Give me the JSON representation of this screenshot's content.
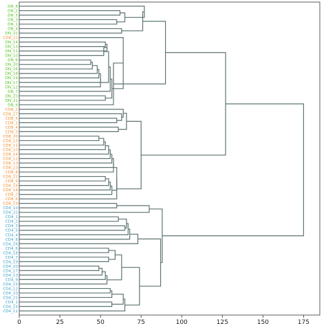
{
  "chart_data": {
    "type": "dendrogram",
    "title": "",
    "xlabel": "",
    "ylabel": "",
    "orientation": "horizontal",
    "xlim": [
      0,
      185
    ],
    "xticks": [
      0,
      25,
      50,
      75,
      100,
      125,
      150,
      175
    ],
    "xtick_labels": [
      "0",
      "25",
      "50",
      "75",
      "100",
      "125",
      "150",
      "175"
    ],
    "colors": {
      "DN": "#52c41a",
      "CD8": "#f08c2a",
      "CD4": "#3aa0c8",
      "link": "#5f7373",
      "axis": "#333333"
    },
    "leaves": [
      {
        "label": "DN_8",
        "group": "DN"
      },
      {
        "label": "DN_2",
        "group": "DN"
      },
      {
        "label": "DN_5",
        "group": "DN"
      },
      {
        "label": "DN_3",
        "group": "DN"
      },
      {
        "label": "DN_1",
        "group": "DN"
      },
      {
        "label": "DN_4",
        "group": "DN"
      },
      {
        "label": "DN_22",
        "group": "DN"
      },
      {
        "label": "CD8_22",
        "group": "CD8"
      },
      {
        "label": "DN_14",
        "group": "DN"
      },
      {
        "label": "DN_13",
        "group": "DN"
      },
      {
        "label": "DN_11",
        "group": "DN"
      },
      {
        "label": "DN_10",
        "group": "DN"
      },
      {
        "label": "DN_6",
        "group": "DN"
      },
      {
        "label": "DN_20",
        "group": "DN"
      },
      {
        "label": "DN_16",
        "group": "DN"
      },
      {
        "label": "DN_18",
        "group": "DN"
      },
      {
        "label": "DN_19",
        "group": "DN"
      },
      {
        "label": "DN_17",
        "group": "DN"
      },
      {
        "label": "DN_12",
        "group": "DN"
      },
      {
        "label": "DN_7",
        "group": "DN"
      },
      {
        "label": "DN_23",
        "group": "DN"
      },
      {
        "label": "DN_21",
        "group": "DN"
      },
      {
        "label": "DN_9",
        "group": "DN"
      },
      {
        "label": "CD8_2",
        "group": "CD8"
      },
      {
        "label": "CD8_17",
        "group": "CD8"
      },
      {
        "label": "CD8_5",
        "group": "CD8"
      },
      {
        "label": "CD8_1",
        "group": "CD8"
      },
      {
        "label": "CD8_4",
        "group": "CD8"
      },
      {
        "label": "CD8_3",
        "group": "CD8"
      },
      {
        "label": "CD8_20",
        "group": "CD8"
      },
      {
        "label": "CD8_15",
        "group": "CD8"
      },
      {
        "label": "CD8_11",
        "group": "CD8"
      },
      {
        "label": "CD8_10",
        "group": "CD8"
      },
      {
        "label": "CD8_14",
        "group": "CD8"
      },
      {
        "label": "CD8_12",
        "group": "CD8"
      },
      {
        "label": "CD8_13",
        "group": "CD8"
      },
      {
        "label": "CD8_23",
        "group": "CD8"
      },
      {
        "label": "CD8_8",
        "group": "CD8"
      },
      {
        "label": "CD8_21",
        "group": "CD8"
      },
      {
        "label": "CD8_9",
        "group": "CD8"
      },
      {
        "label": "CD8_16",
        "group": "CD8"
      },
      {
        "label": "CD8_18",
        "group": "CD8"
      },
      {
        "label": "CD8_7",
        "group": "CD8"
      },
      {
        "label": "CD8_6",
        "group": "CD8"
      },
      {
        "label": "CD8_19",
        "group": "CD8"
      },
      {
        "label": "CD4_10",
        "group": "CD4"
      },
      {
        "label": "CD4_22",
        "group": "CD4"
      },
      {
        "label": "CD4_1",
        "group": "CD4"
      },
      {
        "label": "CD4_2",
        "group": "CD4"
      },
      {
        "label": "CD4_3",
        "group": "CD4"
      },
      {
        "label": "CD4_5",
        "group": "CD4"
      },
      {
        "label": "CD4_4",
        "group": "CD4"
      },
      {
        "label": "CD4_8",
        "group": "CD4"
      },
      {
        "label": "CD4_16",
        "group": "CD4"
      },
      {
        "label": "CD4_6",
        "group": "CD4"
      },
      {
        "label": "CD4_18",
        "group": "CD4"
      },
      {
        "label": "CD4_7",
        "group": "CD4"
      },
      {
        "label": "CD4_19",
        "group": "CD4"
      },
      {
        "label": "CD4_20",
        "group": "CD4"
      },
      {
        "label": "CD4_17",
        "group": "CD4"
      },
      {
        "label": "CD4_13",
        "group": "CD4"
      },
      {
        "label": "CD4_9",
        "group": "CD4"
      },
      {
        "label": "CD4_15",
        "group": "CD4"
      },
      {
        "label": "CD4_12",
        "group": "CD4"
      },
      {
        "label": "CD4_23",
        "group": "CD4"
      },
      {
        "label": "CD4_21",
        "group": "CD4"
      },
      {
        "label": "CD4_1",
        "group": "CD4"
      },
      {
        "label": "CD4_14",
        "group": "CD4"
      },
      {
        "label": "CD4_11",
        "group": "CD4"
      }
    ],
    "merges": [
      {
        "a": 1,
        "b": 2,
        "height": 62
      },
      {
        "a": 3,
        "b": 4,
        "height": 60
      },
      {
        "a": 69,
        "b": 70,
        "height": 65
      },
      {
        "a": 0,
        "b": 71,
        "height": 77
      },
      {
        "a": 5,
        "b": 6,
        "height": 63
      },
      {
        "a": 72,
        "b": 73,
        "height": 76
      },
      {
        "a": 8,
        "b": 9,
        "height": 53
      },
      {
        "a": 75,
        "b": 10,
        "height": 54
      },
      {
        "a": 76,
        "b": 11,
        "height": 52
      },
      {
        "a": 12,
        "b": 13,
        "height": 44
      },
      {
        "a": 78,
        "b": 14,
        "height": 45
      },
      {
        "a": 79,
        "b": 15,
        "height": 48
      },
      {
        "a": 80,
        "b": 16,
        "height": 49
      },
      {
        "a": 81,
        "b": 17,
        "height": 50
      },
      {
        "a": 82,
        "b": 18,
        "height": 50
      },
      {
        "a": 77,
        "b": 83,
        "height": 55
      },
      {
        "a": 84,
        "b": 19,
        "height": 56
      },
      {
        "a": 20,
        "b": 21,
        "height": 53
      },
      {
        "a": 85,
        "b": 86,
        "height": 57
      },
      {
        "a": 7,
        "b": 87,
        "height": 64
      },
      {
        "a": 88,
        "b": 22,
        "height": 58
      },
      {
        "a": 74,
        "b": 89,
        "height": 90
      },
      {
        "a": 25,
        "b": 26,
        "height": 60
      },
      {
        "a": 24,
        "b": 91,
        "height": 63
      },
      {
        "a": 23,
        "b": 92,
        "height": 64
      },
      {
        "a": 27,
        "b": 28,
        "height": 61
      },
      {
        "a": 93,
        "b": 94,
        "height": 66
      },
      {
        "a": 29,
        "b": 30,
        "height": 49
      },
      {
        "a": 96,
        "b": 31,
        "height": 52
      },
      {
        "a": 97,
        "b": 32,
        "height": 53
      },
      {
        "a": 98,
        "b": 33,
        "height": 55
      },
      {
        "a": 99,
        "b": 34,
        "height": 56
      },
      {
        "a": 100,
        "b": 35,
        "height": 57
      },
      {
        "a": 101,
        "b": 36,
        "height": 58
      },
      {
        "a": 102,
        "b": 37,
        "height": 58
      },
      {
        "a": 38,
        "b": 39,
        "height": 53
      },
      {
        "a": 104,
        "b": 40,
        "height": 55
      },
      {
        "a": 105,
        "b": 41,
        "height": 56
      },
      {
        "a": 106,
        "b": 42,
        "height": 57
      },
      {
        "a": 103,
        "b": 107,
        "height": 60
      },
      {
        "a": 108,
        "b": 43,
        "height": 60
      },
      {
        "a": 95,
        "b": 109,
        "height": 75
      },
      {
        "a": 90,
        "b": 110,
        "height": 127
      },
      {
        "a": 44,
        "b": 45,
        "height": 60
      },
      {
        "a": 112,
        "b": 46,
        "height": 80
      },
      {
        "a": 47,
        "b": 48,
        "height": 61
      },
      {
        "a": 49,
        "b": 50,
        "height": 65
      },
      {
        "a": 114,
        "b": 115,
        "height": 66
      },
      {
        "a": 116,
        "b": 51,
        "height": 67
      },
      {
        "a": 117,
        "b": 52,
        "height": 68
      },
      {
        "a": 118,
        "b": 53,
        "height": 73
      },
      {
        "a": 54,
        "b": 55,
        "height": 55
      },
      {
        "a": 56,
        "b": 57,
        "height": 55
      },
      {
        "a": 120,
        "b": 121,
        "height": 59
      },
      {
        "a": 58,
        "b": 59,
        "height": 49
      },
      {
        "a": 123,
        "b": 60,
        "height": 51
      },
      {
        "a": 124,
        "b": 61,
        "height": 53
      },
      {
        "a": 125,
        "b": 62,
        "height": 54
      },
      {
        "a": 122,
        "b": 126,
        "height": 63
      },
      {
        "a": 63,
        "b": 64,
        "height": 56
      },
      {
        "a": 128,
        "b": 65,
        "height": 57
      },
      {
        "a": 66,
        "b": 67,
        "height": 57
      },
      {
        "a": 129,
        "b": 130,
        "height": 64
      },
      {
        "a": 131,
        "b": 68,
        "height": 65
      },
      {
        "a": 127,
        "b": 132,
        "height": 74
      },
      {
        "a": 119,
        "b": 133,
        "height": 87
      },
      {
        "a": 113,
        "b": 134,
        "height": 88
      },
      {
        "a": 111,
        "b": 135,
        "height": 175
      }
    ]
  }
}
